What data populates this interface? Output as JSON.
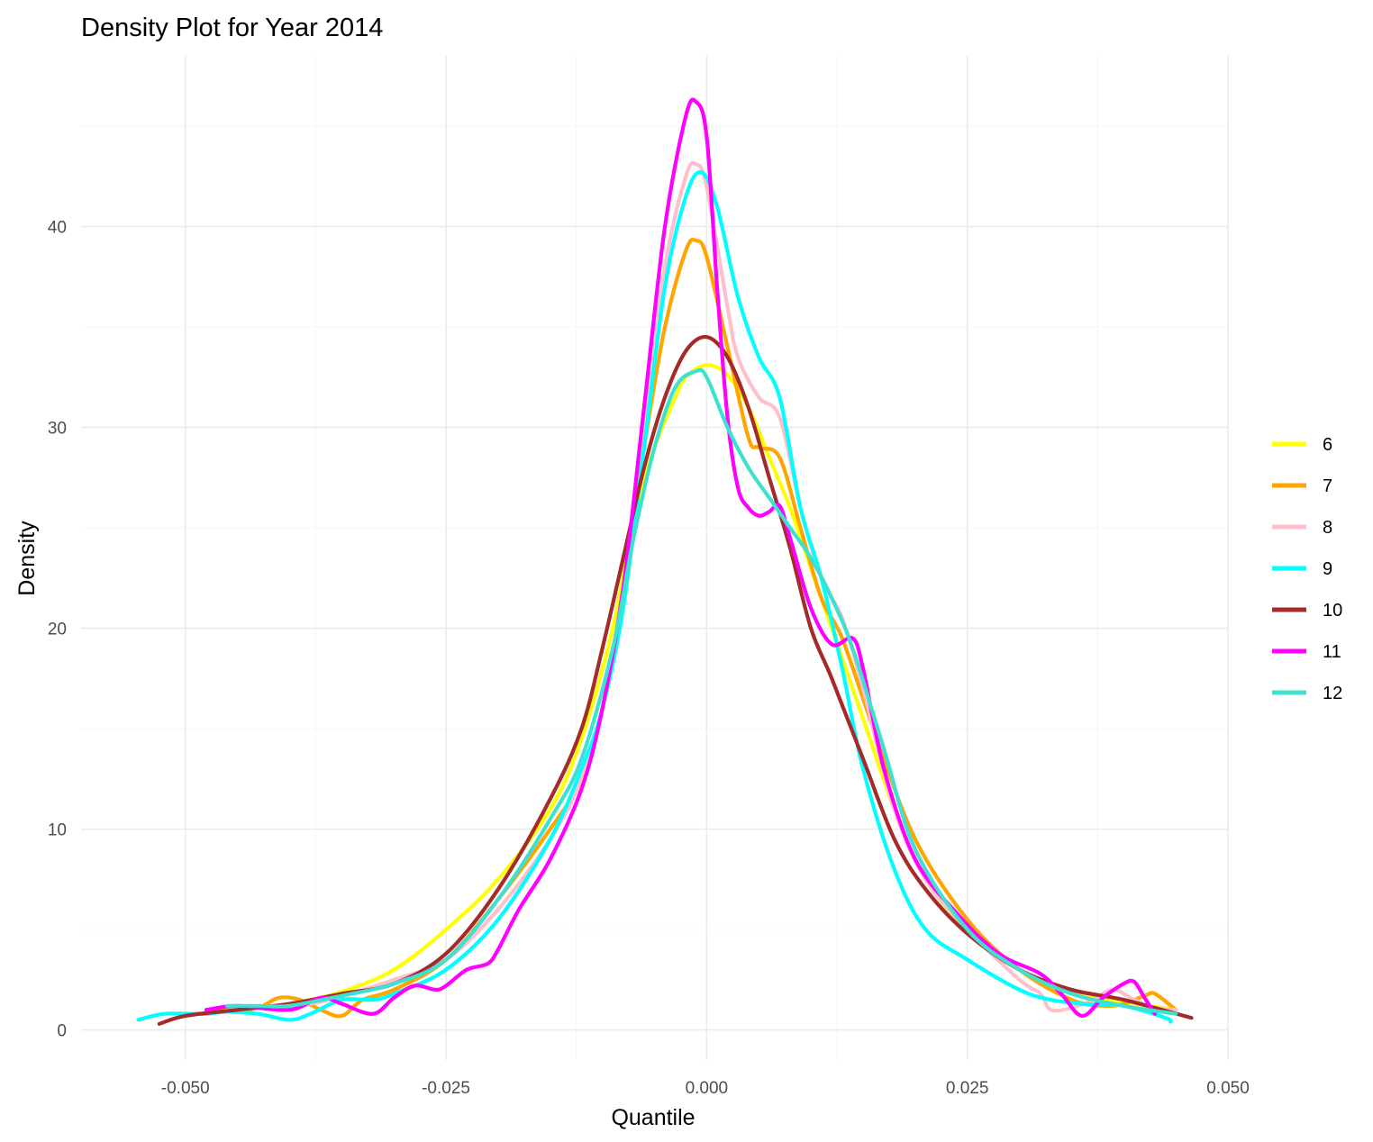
{
  "chart_data": {
    "type": "line",
    "title": "Density Plot for Year 2014",
    "xlabel": "Quantile",
    "ylabel": "Density",
    "xlim": [
      -0.06,
      0.05
    ],
    "ylim": [
      -1.5,
      48.5
    ],
    "x_ticks": [
      -0.05,
      -0.025,
      0.0,
      0.025,
      0.05
    ],
    "x_tick_labels": [
      "-0.050",
      "-0.025",
      "0.000",
      "0.025",
      "0.050"
    ],
    "y_ticks": [
      0,
      10,
      20,
      30,
      40
    ],
    "y_tick_labels": [
      "0",
      "10",
      "20",
      "30",
      "40"
    ],
    "grid": true,
    "legend_position": "right",
    "series": [
      {
        "name": "6",
        "color": "#FFFF00",
        "x": [
          -0.048,
          -0.045,
          -0.04,
          -0.035,
          -0.03,
          -0.025,
          -0.02,
          -0.015,
          -0.012,
          -0.009,
          -0.007,
          -0.005,
          -0.003,
          -0.002,
          0.0,
          0.002,
          0.004,
          0.006,
          0.008,
          0.01,
          0.012,
          0.015,
          0.018,
          0.021,
          0.025,
          0.03,
          0.035,
          0.04,
          0.045
        ],
        "y": [
          0.9,
          1.0,
          1.3,
          1.9,
          3.0,
          5.0,
          7.5,
          11.0,
          14.5,
          20.0,
          25.5,
          29.0,
          31.5,
          32.5,
          33.1,
          32.6,
          31.0,
          28.5,
          26.0,
          23.0,
          20.0,
          15.5,
          11.0,
          7.5,
          5.0,
          3.0,
          1.8,
          1.4,
          1.0
        ]
      },
      {
        "name": "7",
        "color": "#FFA500",
        "x": [
          -0.048,
          -0.045,
          -0.043,
          -0.041,
          -0.039,
          -0.037,
          -0.035,
          -0.033,
          -0.03,
          -0.025,
          -0.02,
          -0.015,
          -0.012,
          -0.01,
          -0.008,
          -0.006,
          -0.004,
          -0.002,
          -0.001,
          0.0,
          0.002,
          0.004,
          0.005,
          0.007,
          0.009,
          0.011,
          0.013,
          0.016,
          0.02,
          0.025,
          0.03,
          0.035,
          0.038,
          0.04,
          0.042,
          0.043,
          0.045
        ],
        "y": [
          1.0,
          1.0,
          1.1,
          1.6,
          1.5,
          1.0,
          0.7,
          1.5,
          2.0,
          3.5,
          6.5,
          10.0,
          12.5,
          16.0,
          22.0,
          29.0,
          35.0,
          38.8,
          39.3,
          38.5,
          34.0,
          29.5,
          29.0,
          28.5,
          25.0,
          21.5,
          19.5,
          15.0,
          9.5,
          5.5,
          3.0,
          1.5,
          1.2,
          1.3,
          1.7,
          1.8,
          1.0
        ]
      },
      {
        "name": "8",
        "color": "#FFC0CB",
        "x": [
          -0.046,
          -0.043,
          -0.04,
          -0.037,
          -0.033,
          -0.03,
          -0.025,
          -0.02,
          -0.015,
          -0.012,
          -0.01,
          -0.008,
          -0.006,
          -0.004,
          -0.002,
          -0.001,
          0.0,
          0.002,
          0.003,
          0.005,
          0.007,
          0.009,
          0.011,
          0.013,
          0.015,
          0.018,
          0.021,
          0.025,
          0.03,
          0.032,
          0.033,
          0.035,
          0.037,
          0.039,
          0.041,
          0.043,
          0.045
        ],
        "y": [
          1.0,
          1.1,
          1.2,
          1.4,
          2.0,
          2.5,
          3.5,
          6.0,
          9.5,
          12.5,
          16.0,
          22.0,
          30.0,
          38.0,
          42.5,
          43.1,
          42.0,
          36.0,
          33.5,
          31.5,
          30.5,
          26.0,
          22.5,
          20.5,
          17.0,
          11.0,
          7.5,
          5.0,
          2.5,
          1.8,
          1.0,
          1.1,
          1.5,
          2.0,
          1.5,
          1.1,
          1.0
        ]
      },
      {
        "name": "9",
        "color": "#00FFFF",
        "x": [
          -0.0545,
          -0.052,
          -0.048,
          -0.046,
          -0.043,
          -0.04,
          -0.038,
          -0.035,
          -0.032,
          -0.03,
          -0.025,
          -0.02,
          -0.015,
          -0.012,
          -0.01,
          -0.008,
          -0.006,
          -0.004,
          -0.002,
          -0.0005,
          0.001,
          0.003,
          0.005,
          0.007,
          0.009,
          0.011,
          0.013,
          0.015,
          0.018,
          0.021,
          0.025,
          0.03,
          0.033,
          0.036,
          0.04,
          0.044,
          0.0445
        ],
        "y": [
          0.5,
          0.8,
          0.8,
          0.9,
          0.8,
          0.5,
          0.8,
          1.5,
          1.5,
          1.8,
          3.0,
          5.5,
          9.5,
          13.0,
          16.0,
          21.0,
          29.0,
          37.0,
          41.5,
          42.7,
          41.0,
          36.5,
          33.5,
          31.5,
          26.0,
          22.5,
          18.0,
          13.0,
          8.0,
          5.0,
          3.5,
          2.0,
          1.5,
          1.3,
          1.2,
          0.6,
          0.4
        ]
      },
      {
        "name": "10",
        "color": "#A52A2A",
        "x": [
          -0.0525,
          -0.05,
          -0.045,
          -0.04,
          -0.035,
          -0.03,
          -0.025,
          -0.02,
          -0.015,
          -0.012,
          -0.01,
          -0.008,
          -0.006,
          -0.004,
          -0.002,
          0.0,
          0.002,
          0.004,
          0.006,
          0.008,
          0.01,
          0.012,
          0.015,
          0.018,
          0.021,
          0.025,
          0.03,
          0.035,
          0.04,
          0.0465
        ],
        "y": [
          0.3,
          0.7,
          1.0,
          1.3,
          1.8,
          2.3,
          3.8,
          7.0,
          11.5,
          15.0,
          19.0,
          23.5,
          28.0,
          31.5,
          33.8,
          34.5,
          33.5,
          31.0,
          27.5,
          24.0,
          20.0,
          17.5,
          13.5,
          9.5,
          7.0,
          4.8,
          3.0,
          2.0,
          1.5,
          0.6
        ]
      },
      {
        "name": "11",
        "color": "#FF00FF",
        "x": [
          -0.048,
          -0.045,
          -0.04,
          -0.037,
          -0.035,
          -0.032,
          -0.03,
          -0.028,
          -0.026,
          -0.025,
          -0.023,
          -0.021,
          -0.02,
          -0.018,
          -0.015,
          -0.012,
          -0.01,
          -0.008,
          -0.006,
          -0.004,
          -0.002,
          -0.001,
          0.0,
          0.001,
          0.002,
          0.003,
          0.004,
          0.005,
          0.006,
          0.007,
          0.008,
          0.01,
          0.012,
          0.014,
          0.015,
          0.017,
          0.02,
          0.024,
          0.028,
          0.032,
          0.034,
          0.036,
          0.038,
          0.04,
          0.041,
          0.042,
          0.043
        ],
        "y": [
          1.0,
          1.2,
          1.0,
          1.6,
          1.3,
          0.8,
          1.6,
          2.2,
          2.0,
          2.2,
          3.0,
          3.3,
          4.0,
          6.0,
          8.5,
          12.0,
          16.0,
          22.0,
          31.0,
          40.0,
          45.5,
          46.2,
          44.5,
          37.0,
          30.5,
          27.0,
          26.0,
          25.6,
          25.8,
          26.1,
          24.5,
          21.0,
          19.2,
          19.5,
          18.0,
          13.0,
          8.5,
          5.8,
          3.8,
          2.8,
          1.8,
          0.7,
          1.6,
          2.3,
          2.4,
          1.6,
          0.8
        ]
      },
      {
        "name": "12",
        "color": "#40E0D0",
        "x": [
          -0.046,
          -0.043,
          -0.04,
          -0.035,
          -0.03,
          -0.025,
          -0.02,
          -0.015,
          -0.012,
          -0.009,
          -0.007,
          -0.005,
          -0.003,
          -0.001,
          0.0,
          0.002,
          0.004,
          0.006,
          0.008,
          0.01,
          0.012,
          0.014,
          0.017,
          0.02,
          0.025,
          0.03,
          0.035,
          0.04,
          0.045
        ],
        "y": [
          1.2,
          1.2,
          1.2,
          1.7,
          2.3,
          3.5,
          6.5,
          10.5,
          13.5,
          19.0,
          24.5,
          29.0,
          32.0,
          32.8,
          32.5,
          30.0,
          28.0,
          26.5,
          25.0,
          23.5,
          21.5,
          19.0,
          14.0,
          9.0,
          5.0,
          3.0,
          1.8,
          1.2,
          0.8
        ]
      }
    ]
  }
}
